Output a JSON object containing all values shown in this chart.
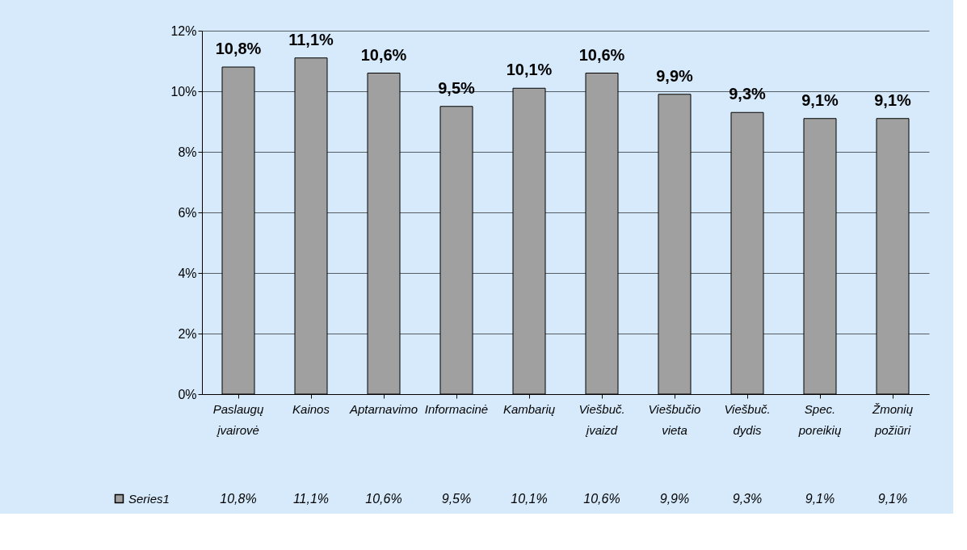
{
  "chart_data": {
    "type": "bar",
    "categories": [
      "Paslaugų įvairovė",
      "Kainos",
      "Aptarnavimo",
      "Informacinė",
      "Kambarių",
      "Viešbuč.įvaizd",
      "Viešbučio vieta",
      "Viešbuč.dydis",
      "Spec.poreikių",
      "Žmonių požiūri"
    ],
    "series": [
      {
        "name": "Series1",
        "color": "#a0a0a0",
        "values": [
          10.8,
          11.1,
          10.6,
          9.5,
          10.1,
          10.6,
          9.9,
          9.3,
          9.1,
          9.1
        ],
        "value_labels": [
          "10,8%",
          "11,1%",
          "10,6%",
          "9,5%",
          "10,1%",
          "10,6%",
          "9,9%",
          "9,3%",
          "9,1%",
          "9,1%"
        ]
      }
    ],
    "ylim": [
      0,
      12
    ],
    "yticks": [
      {
        "value": 0,
        "label": "0%"
      },
      {
        "value": 2,
        "label": "2%"
      },
      {
        "value": 4,
        "label": "4%"
      },
      {
        "value": 6,
        "label": "6%"
      },
      {
        "value": 8,
        "label": "8%"
      },
      {
        "value": 10,
        "label": "10%"
      },
      {
        "value": 12,
        "label": "12%"
      }
    ],
    "grid": "y",
    "legend": "bottom left"
  }
}
